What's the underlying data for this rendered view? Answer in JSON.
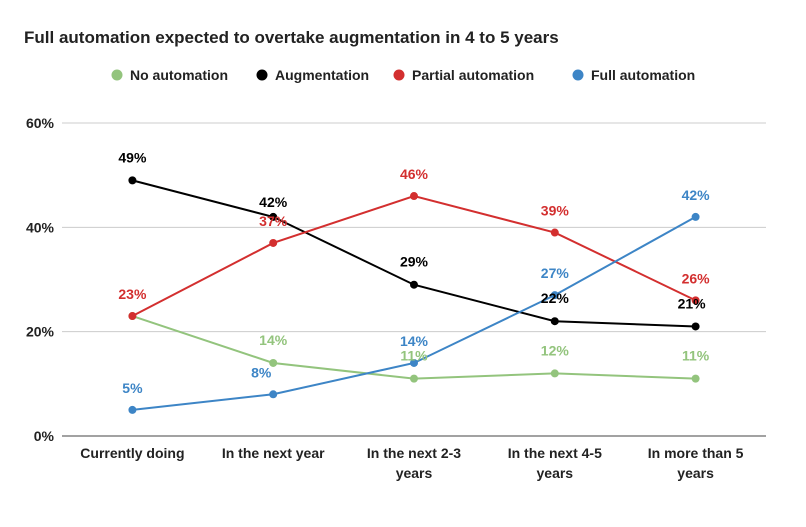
{
  "chart_data": {
    "type": "line",
    "title": "Full automation expected to overtake augmentation in 4 to 5 years",
    "categories": [
      "Currently doing",
      "In the next year",
      "In the next 2-3 years",
      "In the next 4-5 years",
      "In more than 5 years"
    ],
    "category_lines": [
      [
        "Currently doing"
      ],
      [
        "In the next year"
      ],
      [
        "In the next 2-3",
        "years"
      ],
      [
        "In the next 4-5",
        "years"
      ],
      [
        "In more than 5",
        "years"
      ]
    ],
    "ylim": [
      0,
      60
    ],
    "yticks": [
      {
        "value": 0,
        "label": "0%"
      },
      {
        "value": 20,
        "label": "20%"
      },
      {
        "value": 40,
        "label": "40%"
      },
      {
        "value": 60,
        "label": "60%"
      }
    ],
    "grid": true,
    "legend_position": "top",
    "series": [
      {
        "key": "no-automation",
        "name": "No automation",
        "color": "#93c47d",
        "values": [
          23,
          14,
          11,
          12,
          11
        ],
        "labels": [
          "",
          "14%",
          "11%",
          "12%",
          "11%"
        ]
      },
      {
        "key": "augmentation",
        "name": "Augmentation",
        "color": "#000000",
        "values": [
          49,
          42,
          29,
          22,
          21
        ],
        "labels": [
          "49%",
          "42%",
          "29%",
          "22%",
          "21%"
        ]
      },
      {
        "key": "partial-automation",
        "name": "Partial automation",
        "color": "#d32f2f",
        "values": [
          23,
          37,
          46,
          39,
          26
        ],
        "labels": [
          "23%",
          "37%",
          "46%",
          "39%",
          "26%"
        ]
      },
      {
        "key": "full-automation",
        "name": "Full automation",
        "color": "#3d85c6",
        "values": [
          5,
          8,
          14,
          27,
          42
        ],
        "labels": [
          "5%",
          "8%",
          "14%",
          "27%",
          "42%"
        ]
      }
    ]
  }
}
